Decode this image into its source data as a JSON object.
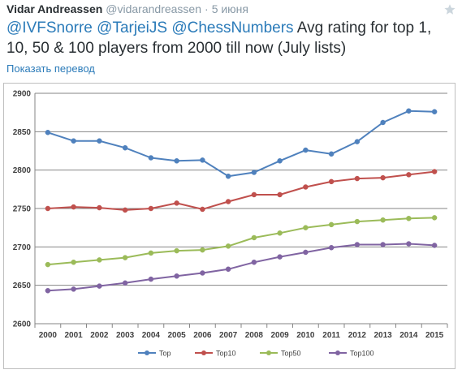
{
  "tweet": {
    "author_name": "Vidar Andreassen",
    "author_handle": "@vidarandreassen",
    "separator": "·",
    "date": "5 июня",
    "mentions": [
      "@IVFSnorre",
      "@TarjeiJS",
      "@ChessNumbers"
    ],
    "text": "Avg rating for top 1, 10, 50 & 100 players from 2000 till now (July lists)",
    "translate_label": "Показать перевод",
    "star_icon": "star-icon",
    "link_color": "#2b7bb9"
  },
  "chart_data": {
    "type": "line",
    "title": "",
    "xlabel": "",
    "ylabel": "",
    "x": [
      "2000",
      "2001",
      "2002",
      "2003",
      "2004",
      "2005",
      "2006",
      "2007",
      "2008",
      "2009",
      "2010",
      "2011",
      "2012",
      "2013",
      "2014",
      "2015"
    ],
    "ylim": [
      2600,
      2900
    ],
    "yticks": [
      2600,
      2650,
      2700,
      2750,
      2800,
      2850,
      2900
    ],
    "grid": true,
    "legend_position": "bottom",
    "series": [
      {
        "name": "Top",
        "color": "#4f81bd",
        "values": [
          2849,
          2838,
          2838,
          2829,
          2816,
          2812,
          2813,
          2792,
          2797,
          2812,
          2826,
          2821,
          2837,
          2862,
          2877,
          2876
        ]
      },
      {
        "name": "Top10",
        "color": "#c0504d",
        "values": [
          2750,
          2752,
          2751,
          2748,
          2750,
          2757,
          2749,
          2759,
          2768,
          2768,
          2778,
          2785,
          2789,
          2790,
          2794,
          2798
        ]
      },
      {
        "name": "Top50",
        "color": "#9bbb59",
        "values": [
          2677,
          2680,
          2683,
          2686,
          2692,
          2695,
          2696,
          2701,
          2712,
          2718,
          2725,
          2729,
          2733,
          2735,
          2737,
          2738
        ]
      },
      {
        "name": "Top100",
        "color": "#8064a2",
        "values": [
          2643,
          2645,
          2649,
          2653,
          2658,
          2662,
          2666,
          2671,
          2680,
          2687,
          2693,
          2699,
          2703,
          2703,
          2704,
          2702
        ]
      }
    ]
  }
}
